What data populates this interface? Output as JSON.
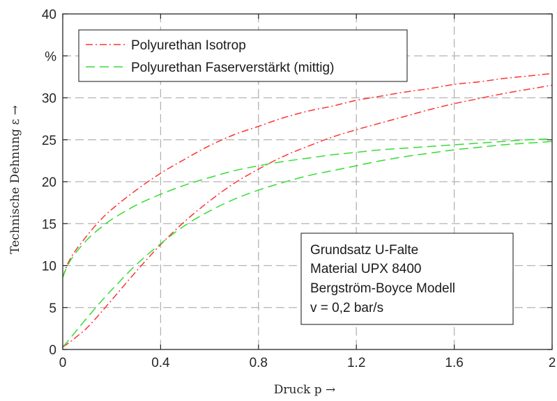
{
  "chart_data": {
    "type": "line",
    "xlabel": "Druck p →",
    "ylabel": "Technische Dehnung ε →",
    "xlim": [
      0,
      2
    ],
    "ylim": [
      0,
      40
    ],
    "x_ticks": [
      "0",
      "0.4",
      "0.8",
      "1.2",
      "1.6",
      "2"
    ],
    "x_tick_values": [
      0,
      0.4,
      0.8,
      1.2,
      1.6,
      2
    ],
    "y_ticks": [
      "0",
      "5",
      "10",
      "15",
      "20",
      "25",
      "30",
      "%",
      "40"
    ],
    "y_tick_values": [
      0,
      5,
      10,
      15,
      20,
      25,
      30,
      35,
      40
    ],
    "grid": true,
    "legend_position": "top-left",
    "series": [
      {
        "name": "Polyurethan Isotrop",
        "color": "#ff3333",
        "style": "dashdot",
        "branches": [
          {
            "x": [
              0,
              0.02,
              0.05,
              0.1,
              0.15,
              0.2,
              0.3,
              0.4,
              0.5,
              0.6,
              0.7,
              0.8,
              0.9,
              1.0,
              1.1,
              1.2,
              1.3,
              1.4,
              1.5,
              1.6,
              1.7,
              1.8,
              1.9,
              2.0
            ],
            "y": [
              8.6,
              10.2,
              11.7,
              13.6,
              15.3,
              16.7,
              19.0,
              21.0,
              22.7,
              24.3,
              25.6,
              26.6,
              27.6,
              28.4,
              29.0,
              29.7,
              30.2,
              30.7,
              31.1,
              31.6,
              31.9,
              32.3,
              32.6,
              32.9
            ]
          },
          {
            "x": [
              0,
              0.03,
              0.06,
              0.1,
              0.15,
              0.2,
              0.3,
              0.4,
              0.5,
              0.6,
              0.7,
              0.8,
              0.9,
              1.0,
              1.1,
              1.2,
              1.3,
              1.4,
              1.5,
              1.6,
              1.7,
              1.8,
              1.9,
              2.0
            ],
            "y": [
              0.3,
              0.9,
              1.6,
              2.6,
              4.2,
              5.9,
              9.3,
              12.5,
              15.3,
              17.7,
              19.8,
              21.5,
              23.0,
              24.2,
              25.3,
              26.2,
              27.0,
              27.8,
              28.6,
              29.3,
              29.9,
              30.5,
              31.0,
              31.5
            ]
          }
        ]
      },
      {
        "name": "Polyurethan Faserverstärkt (mittig)",
        "color": "#33dd33",
        "style": "dashed",
        "branches": [
          {
            "x": [
              0,
              0.02,
              0.05,
              0.1,
              0.15,
              0.2,
              0.3,
              0.4,
              0.5,
              0.6,
              0.7,
              0.8,
              0.9,
              1.0,
              1.1,
              1.2,
              1.3,
              1.4,
              1.5,
              1.6,
              1.7,
              1.8,
              1.9,
              2.0
            ],
            "y": [
              8.6,
              10.0,
              11.4,
              13.1,
              14.4,
              15.5,
              17.2,
              18.5,
              19.6,
              20.5,
              21.3,
              21.9,
              22.4,
              22.8,
              23.2,
              23.5,
              23.8,
              24.0,
              24.2,
              24.4,
              24.6,
              24.8,
              25.0,
              25.1
            ]
          },
          {
            "x": [
              0,
              0.03,
              0.06,
              0.1,
              0.15,
              0.2,
              0.3,
              0.4,
              0.5,
              0.6,
              0.7,
              0.8,
              0.9,
              1.0,
              1.1,
              1.2,
              1.3,
              1.4,
              1.5,
              1.6,
              1.7,
              1.8,
              1.9,
              2.0
            ],
            "y": [
              0.3,
              1.3,
              2.4,
              3.8,
              5.5,
              7.1,
              10.1,
              12.6,
              14.8,
              16.5,
              17.9,
              19.0,
              19.9,
              20.7,
              21.3,
              21.9,
              22.5,
              23.0,
              23.4,
              23.8,
              24.1,
              24.4,
              24.6,
              24.8
            ]
          }
        ]
      }
    ],
    "annotation": [
      "Grundsatz U-Falte",
      "Material UPX 8400",
      "Bergström-Boyce Modell",
      "v = 0,2 bar/s"
    ]
  }
}
